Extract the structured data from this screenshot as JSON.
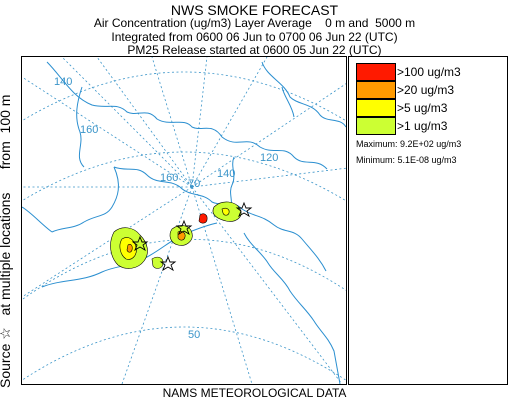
{
  "header": {
    "title": "NWS SMOKE FORECAST",
    "line1": "Air Concentration (ug/m3) Layer Average    0 m and  5000 m",
    "line2": "Integrated from 0600 06 Jun to 0700 06 Jun 22 (UTC)",
    "line3": "PM25 Release started at 0600 05 Jun 22 (UTC)"
  },
  "side_label": "Source ☆   at multiple locations      from  100 m",
  "footer": "NAMS METEOROLOGICAL DATA",
  "legend": {
    "items": [
      {
        "label": ">100 ug/m3",
        "color": "#ff1a00"
      },
      {
        "label": ">20 ug/m3",
        "color": "#ff9a00"
      },
      {
        "label": ">5 ug/m3",
        "color": "#ffff00"
      },
      {
        "label": ">1 ug/m3",
        "color": "#ccff33"
      }
    ],
    "maximum": "Maximum: 9.2E+02 ug/m3",
    "minimum": "Minimum: 5.1E-08 ug/m3"
  },
  "map": {
    "grid_labels": {
      "lon_140w_top": "140",
      "lon_160w": "160",
      "lat_70": "70",
      "lon_140w": "140",
      "lon_120w": "120",
      "lat_50": "50"
    },
    "colors": {
      "grid": "#3b95c9",
      "coast": "#2b8fd0"
    }
  }
}
